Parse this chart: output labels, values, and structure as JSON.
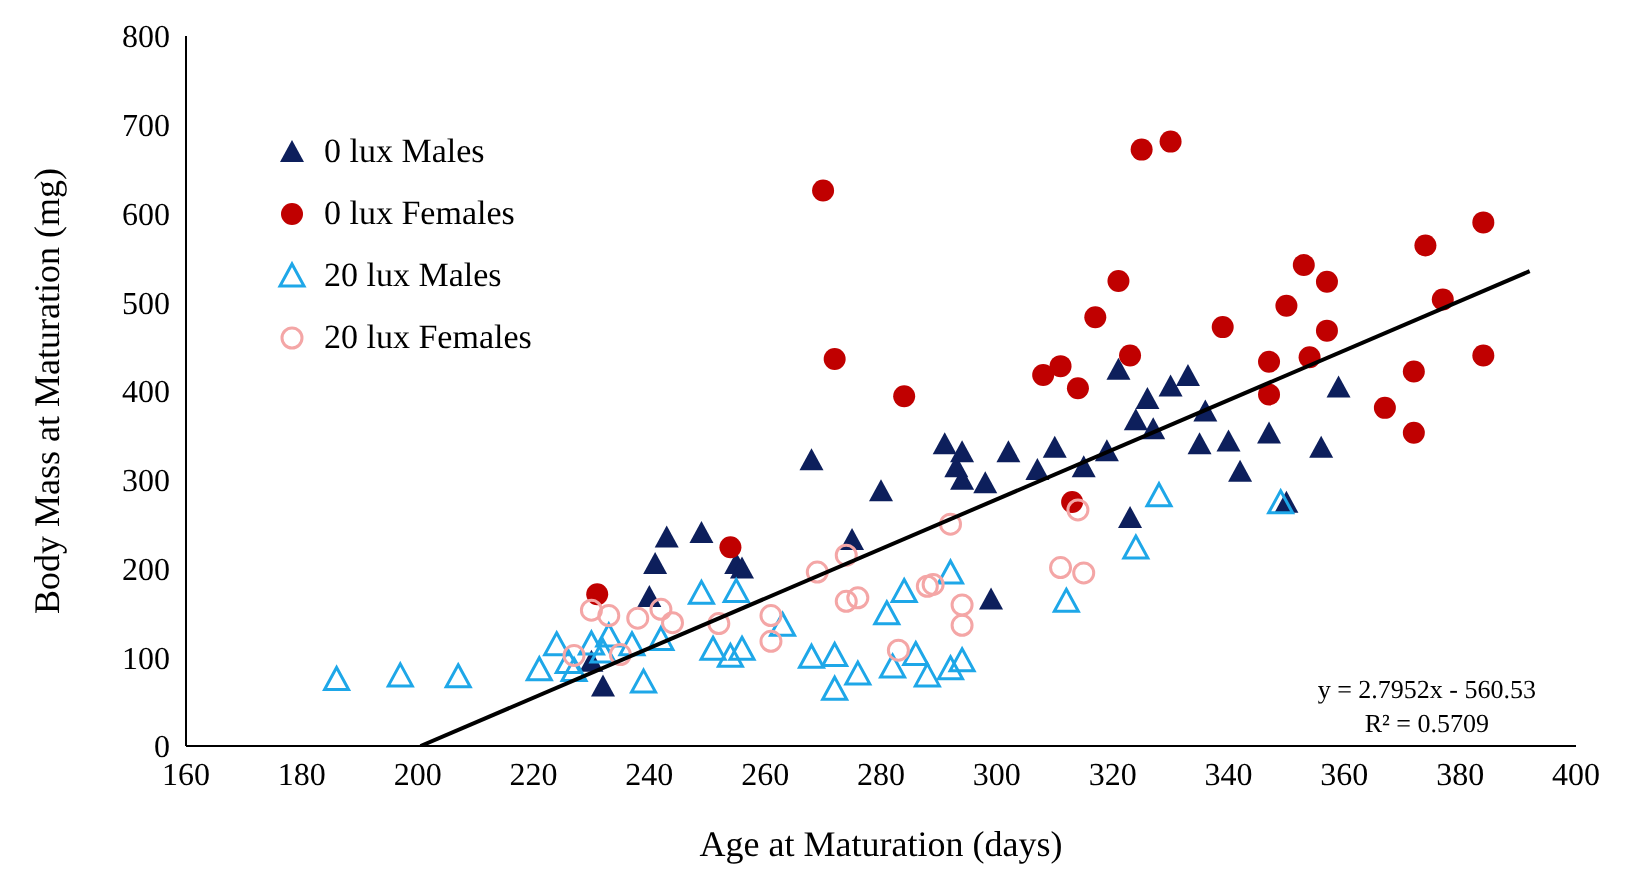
{
  "chart_data": {
    "type": "scatter",
    "xlabel": "Age at Maturation (days)",
    "ylabel": "Body Mass at Maturation (mg)",
    "xlim": [
      160,
      400
    ],
    "xticks": [
      160,
      180,
      200,
      220,
      240,
      260,
      280,
      300,
      320,
      340,
      360,
      380,
      400
    ],
    "ylim": [
      0,
      800
    ],
    "yticks": [
      0,
      100,
      200,
      300,
      400,
      500,
      600,
      700,
      800
    ],
    "grid": false,
    "legend": "top left",
    "annotations": [
      "y = 2.7952x - 560.53",
      "R² = 0.5709"
    ],
    "series": [
      {
        "name": "0 lux Males",
        "color": "#0d1f5c",
        "marker": "triangle",
        "x": [
          230,
          232,
          240,
          241,
          243,
          249,
          255,
          256,
          268,
          275,
          280,
          291,
          293,
          294,
          294,
          298,
          299,
          302,
          307,
          310,
          315,
          319,
          321,
          323,
          324,
          326,
          327,
          330,
          333,
          336,
          335,
          340,
          342,
          347,
          350,
          356,
          359
        ],
        "values": [
          95,
          67,
          168,
          205,
          235,
          240,
          205,
          200,
          322,
          232,
          287,
          340,
          314,
          331,
          300,
          296,
          165,
          331,
          311,
          336,
          314,
          332,
          424,
          257,
          367,
          391,
          357,
          405,
          417,
          377,
          340,
          343,
          309,
          352,
          274,
          336,
          404
        ]
      },
      {
        "name": "0 lux Females",
        "color": "#c00000",
        "marker": "circle",
        "x": [
          231,
          254,
          270,
          272,
          284,
          308,
          311,
          314,
          313,
          317,
          321,
          323,
          325,
          330,
          339,
          347,
          347,
          350,
          353,
          354,
          357,
          357,
          367,
          372,
          372,
          374,
          377,
          384,
          384
        ],
        "values": [
          171,
          224,
          626,
          436,
          394,
          418,
          428,
          403,
          275,
          483,
          524,
          440,
          672,
          681,
          472,
          433,
          396,
          496,
          542,
          438,
          523,
          468,
          381,
          422,
          353,
          564,
          503,
          590,
          440
        ]
      },
      {
        "name": "20 lux Males",
        "color": "#1ea7e8",
        "marker": "triangle-open",
        "x": [
          186,
          197,
          207,
          221,
          224,
          226,
          227,
          230,
          233,
          232,
          237,
          239,
          242,
          249,
          251,
          254,
          255,
          256,
          263,
          268,
          272,
          272,
          276,
          281,
          282,
          284,
          286,
          288,
          292,
          292,
          294,
          312,
          324,
          328,
          349
        ],
        "values": [
          75,
          79,
          78,
          86,
          114,
          94,
          85,
          115,
          124,
          106,
          114,
          72,
          120,
          172,
          109,
          101,
          174,
          109,
          136,
          100,
          64,
          102,
          81,
          149,
          89,
          174,
          103,
          79,
          195,
          87,
          96,
          163,
          223,
          282,
          274
        ]
      },
      {
        "name": "20 lux Females",
        "color": "#f4a6a6",
        "marker": "circle-open",
        "x": [
          227,
          230,
          233,
          235,
          238,
          242,
          244,
          252,
          261,
          261,
          269,
          274,
          274,
          276,
          283,
          288,
          289,
          292,
          294,
          294,
          311,
          314,
          315
        ],
        "values": [
          102,
          153,
          147,
          103,
          144,
          154,
          139,
          138,
          147,
          118,
          196,
          163,
          215,
          167,
          108,
          180,
          182,
          250,
          159,
          136,
          201,
          266,
          195
        ]
      },
      {
        "type": "line",
        "color": "#000000",
        "marker": "none",
        "x": [
          200.5,
          392
        ],
        "values": [
          0,
          535
        ]
      }
    ]
  }
}
